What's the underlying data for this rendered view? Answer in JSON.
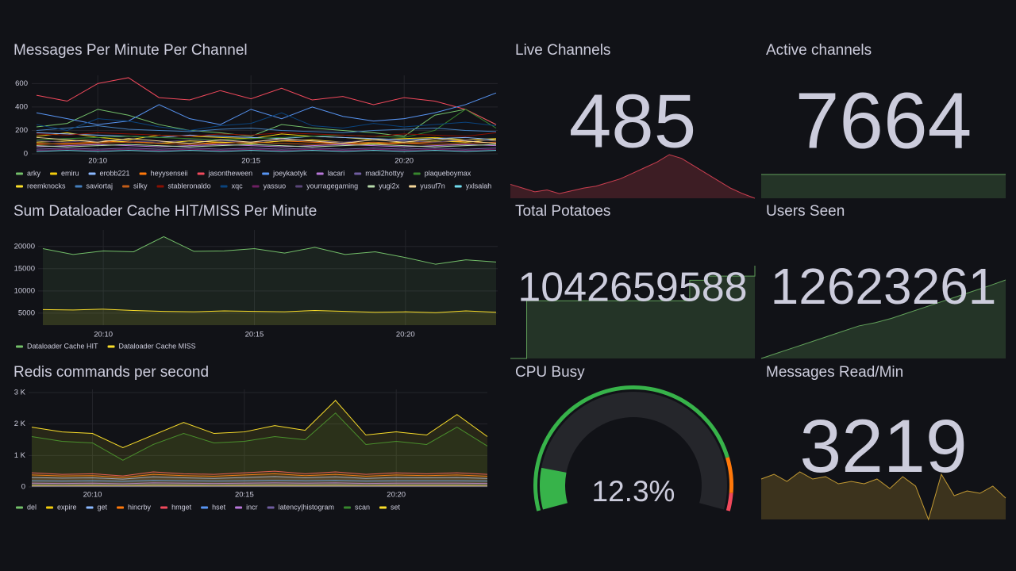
{
  "panels": [
    {
      "type": "timeseries",
      "title": "Messages Per Minute Per Channel",
      "x": [
        "20:08",
        "20:09",
        "20:10",
        "20:11",
        "20:12",
        "20:13",
        "20:14",
        "20:15",
        "20:16",
        "20:17",
        "20:18",
        "20:19",
        "20:20",
        "20:21",
        "20:22",
        "20:23"
      ],
      "xticks": [
        "20:10",
        "20:15",
        "20:20"
      ],
      "ylim": [
        0,
        670
      ],
      "yticks": [
        0,
        200,
        400,
        600
      ],
      "fill_opacity": 0,
      "grid": true,
      "series": [
        {
          "name": "arky",
          "color": "#73bf69",
          "values": [
            230,
            260,
            380,
            330,
            250,
            200,
            180,
            150,
            250,
            220,
            200,
            180,
            150,
            330,
            380,
            250
          ]
        },
        {
          "name": "emiru",
          "color": "#f2cc0c",
          "values": [
            150,
            180,
            140,
            120,
            160,
            150,
            140,
            130,
            170,
            150,
            140,
            120,
            130,
            140,
            120,
            130
          ]
        },
        {
          "name": "erobb221",
          "color": "#8ab8ff",
          "values": [
            180,
            170,
            160,
            150,
            140,
            160,
            150,
            140,
            130,
            150,
            140,
            130,
            120,
            130,
            140,
            120
          ]
        },
        {
          "name": "heyysenseii",
          "color": "#ff780a",
          "values": [
            80,
            90,
            100,
            110,
            90,
            80,
            100,
            90,
            110,
            100,
            90,
            80,
            90,
            100,
            110,
            90
          ]
        },
        {
          "name": "jasontheween",
          "color": "#f2495c",
          "values": [
            500,
            450,
            600,
            650,
            480,
            460,
            540,
            470,
            560,
            460,
            490,
            420,
            480,
            450,
            380,
            250
          ]
        },
        {
          "name": "joeykaotyk",
          "color": "#5794f2",
          "values": [
            350,
            300,
            250,
            280,
            420,
            300,
            250,
            380,
            300,
            400,
            320,
            280,
            300,
            350,
            420,
            520
          ]
        },
        {
          "name": "lacari",
          "color": "#b877d9",
          "values": [
            60,
            70,
            80,
            70,
            60,
            70,
            80,
            70,
            60,
            70,
            80,
            70,
            60,
            70,
            80,
            70
          ]
        },
        {
          "name": "madi2hottyy",
          "color": "#705da0",
          "values": [
            40,
            50,
            40,
            50,
            40,
            50,
            40,
            50,
            40,
            50,
            40,
            50,
            40,
            50,
            40,
            50
          ]
        },
        {
          "name": "plaqueboymax",
          "color": "#37872d",
          "values": [
            120,
            130,
            140,
            150,
            140,
            130,
            120,
            130,
            140,
            150,
            160,
            150,
            140,
            200,
            380,
            220
          ]
        },
        {
          "name": "reemknocks",
          "color": "#fade2a",
          "values": [
            100,
            110,
            120,
            100,
            90,
            110,
            100,
            90,
            110,
            120,
            100,
            90,
            100,
            110,
            100,
            120
          ]
        },
        {
          "name": "saviortaj",
          "color": "#447ebc",
          "values": [
            200,
            220,
            240,
            210,
            200,
            190,
            210,
            220,
            200,
            190,
            180,
            200,
            210,
            220,
            200,
            190
          ]
        },
        {
          "name": "silky",
          "color": "#c15c17",
          "values": [
            90,
            80,
            90,
            100,
            90,
            80,
            90,
            100,
            90,
            80,
            90,
            100,
            90,
            80,
            90,
            100
          ]
        },
        {
          "name": "stableronaldo",
          "color": "#890f02",
          "values": [
            170,
            160,
            180,
            170,
            160,
            150,
            170,
            160,
            180,
            170,
            160,
            150,
            170,
            160,
            150,
            180
          ]
        },
        {
          "name": "xqc",
          "color": "#0a437c",
          "values": [
            250,
            200,
            300,
            280,
            230,
            200,
            240,
            260,
            350,
            240,
            220,
            260,
            230,
            250,
            270,
            240
          ]
        },
        {
          "name": "yassuo",
          "color": "#6d1f62",
          "values": [
            30,
            40,
            30,
            40,
            30,
            40,
            30,
            40,
            30,
            40,
            30,
            40,
            30,
            40,
            30,
            40
          ]
        },
        {
          "name": "yourragegaming",
          "color": "#584477",
          "values": [
            110,
            100,
            120,
            110,
            100,
            120,
            110,
            100,
            120,
            110,
            100,
            120,
            110,
            100,
            120,
            110
          ]
        },
        {
          "name": "yugi2x",
          "color": "#b7dbab",
          "values": [
            70,
            60,
            70,
            80,
            70,
            60,
            70,
            80,
            70,
            60,
            70,
            80,
            70,
            60,
            70,
            80
          ]
        },
        {
          "name": "yusuf7n",
          "color": "#f4d598",
          "values": [
            140,
            120,
            100,
            130,
            110,
            90,
            120,
            100,
            130,
            110,
            90,
            120,
            100,
            130,
            110,
            90
          ]
        },
        {
          "name": "yxlsalah",
          "color": "#70dbed",
          "values": [
            20,
            30,
            20,
            30,
            20,
            30,
            20,
            30,
            20,
            30,
            20,
            30,
            20,
            30,
            20,
            30
          ]
        }
      ]
    },
    {
      "type": "timeseries",
      "title": "Sum Dataloader Cache HIT/MISS Per Minute",
      "x": [
        "20:08",
        "20:09",
        "20:10",
        "20:11",
        "20:12",
        "20:13",
        "20:14",
        "20:15",
        "20:16",
        "20:17",
        "20:18",
        "20:19",
        "20:20",
        "20:21",
        "20:22",
        "20:23"
      ],
      "xticks": [
        "20:10",
        "20:15",
        "20:20"
      ],
      "ylim": [
        2300,
        23700
      ],
      "yticks": [
        5000,
        10000,
        15000,
        20000
      ],
      "fill_opacity": 0.1,
      "grid": true,
      "series": [
        {
          "name": "Dataloader Cache HIT",
          "color": "#73bf69",
          "values": [
            19500,
            18200,
            19000,
            18800,
            22200,
            18900,
            19000,
            19500,
            18500,
            19800,
            18200,
            18800,
            17500,
            16000,
            17000,
            16500
          ]
        },
        {
          "name": "Dataloader Cache MISS",
          "color": "#fade2a",
          "values": [
            5800,
            5700,
            5900,
            5600,
            5400,
            5300,
            5500,
            5400,
            5300,
            5600,
            5400,
            5200,
            5300,
            5100,
            5500,
            5200
          ]
        }
      ]
    },
    {
      "type": "timeseries",
      "title": "Redis commands per second",
      "x": [
        "20:08",
        "20:09",
        "20:10",
        "20:11",
        "20:12",
        "20:13",
        "20:14",
        "20:15",
        "20:16",
        "20:17",
        "20:18",
        "20:19",
        "20:20",
        "20:21",
        "20:22",
        "20:23"
      ],
      "xticks": [
        "20:10",
        "20:15",
        "20:20"
      ],
      "ylim": [
        0,
        3100
      ],
      "yticks": [
        0,
        {
          "value": 1000,
          "label": "1 K"
        },
        {
          "value": 2000,
          "label": "2 K"
        },
        {
          "value": 3000,
          "label": "3 K"
        }
      ],
      "fill_opacity": 0.1,
      "grid": true,
      "series": [
        {
          "name": "del",
          "color": "#73bf69",
          "values": [
            60,
            55,
            60,
            50,
            65,
            60,
            55,
            60,
            65,
            60,
            65,
            55,
            60,
            60,
            60,
            55
          ]
        },
        {
          "name": "expire",
          "color": "#f2cc0c",
          "values": [
            40,
            35,
            40,
            30,
            45,
            40,
            35,
            40,
            45,
            40,
            45,
            35,
            40,
            40,
            40,
            35
          ]
        },
        {
          "name": "get",
          "color": "#8ab8ff",
          "values": [
            300,
            280,
            290,
            250,
            320,
            290,
            270,
            300,
            330,
            290,
            320,
            270,
            300,
            290,
            300,
            270
          ]
        },
        {
          "name": "hincrby",
          "color": "#ff780a",
          "values": [
            380,
            350,
            360,
            300,
            400,
            360,
            340,
            380,
            420,
            360,
            400,
            340,
            380,
            360,
            380,
            340
          ]
        },
        {
          "name": "hmget",
          "color": "#f2495c",
          "values": [
            450,
            400,
            420,
            350,
            480,
            420,
            400,
            450,
            500,
            420,
            480,
            400,
            450,
            420,
            450,
            400
          ]
        },
        {
          "name": "hset",
          "color": "#5794f2",
          "values": [
            200,
            190,
            200,
            180,
            210,
            200,
            190,
            200,
            210,
            200,
            210,
            190,
            200,
            200,
            200,
            190
          ]
        },
        {
          "name": "incr",
          "color": "#b877d9",
          "values": [
            120,
            110,
            120,
            100,
            130,
            120,
            110,
            120,
            130,
            120,
            130,
            110,
            120,
            120,
            120,
            110
          ]
        },
        {
          "name": "latency|histogram",
          "color": "#705da0",
          "values": [
            20,
            18,
            20,
            15,
            22,
            20,
            18,
            20,
            22,
            20,
            22,
            18,
            20,
            20,
            20,
            18
          ]
        },
        {
          "name": "scan",
          "color": "#37872d",
          "values": [
            1600,
            1450,
            1400,
            850,
            1350,
            1700,
            1400,
            1450,
            1600,
            1500,
            2350,
            1350,
            1450,
            1350,
            1900,
            1300
          ]
        },
        {
          "name": "set",
          "color": "#fade2a",
          "values": [
            1900,
            1750,
            1700,
            1250,
            1650,
            2050,
            1700,
            1750,
            1950,
            1800,
            2750,
            1650,
            1750,
            1650,
            2300,
            1600
          ]
        }
      ]
    },
    {
      "type": "stat",
      "title": "Live Channels",
      "value": 485,
      "color": "#f2495c",
      "line_interpolation": "linear",
      "sparkline": [
        560,
        540,
        520,
        530,
        510,
        525,
        540,
        550,
        570,
        590,
        620,
        650,
        680,
        720,
        700,
        660,
        620,
        580,
        540,
        510,
        485
      ]
    },
    {
      "type": "stat",
      "title": "Active channels",
      "value": 7664,
      "color": "#73bf69",
      "line_interpolation": "linear",
      "sparkline": [
        7664,
        7664,
        7664,
        7664,
        7664,
        7664,
        7664,
        7664
      ]
    },
    {
      "type": "stat",
      "title": "Total Potatoes",
      "value": 1042659588,
      "color": "#73bf69",
      "line_interpolation": "stepAfter",
      "sparkline": [
        930000000,
        1000000000,
        1000000000,
        1000000000,
        1000000000,
        1000000000,
        1000000000,
        1000000000,
        1000000000,
        1000000000,
        1000000000,
        1025000000,
        1030000000,
        1030000000,
        1030000000,
        1042659588
      ]
    },
    {
      "type": "stat",
      "title": "Users Seen",
      "value": 12623261,
      "color": "#73bf69",
      "line_interpolation": "linear",
      "sparkline": [
        11900000,
        11950000,
        12000000,
        12050000,
        12100000,
        12150000,
        12200000,
        12230000,
        12270000,
        12320000,
        12370000,
        12420000,
        12470000,
        12520000,
        12570000,
        12623261
      ]
    },
    {
      "type": "gauge",
      "title": "CPU Busy",
      "value": 12.3,
      "value_label": "12.3%",
      "min": 0,
      "max": 100,
      "color": "#37b34a",
      "thresholds": [
        {
          "value": 85,
          "color": "#ff780a"
        },
        {
          "value": 95,
          "color": "#f2495c"
        }
      ]
    },
    {
      "type": "stat",
      "title": "Messages Read/Min",
      "value": 3219,
      "color": "#eab839",
      "line_interpolation": "linear",
      "sparkline": [
        3500,
        3700,
        3400,
        3800,
        3500,
        3600,
        3300,
        3400,
        3300,
        3500,
        3100,
        3600,
        3200,
        1800,
        3700,
        2800,
        3000,
        2900,
        3200,
        2700
      ]
    }
  ]
}
